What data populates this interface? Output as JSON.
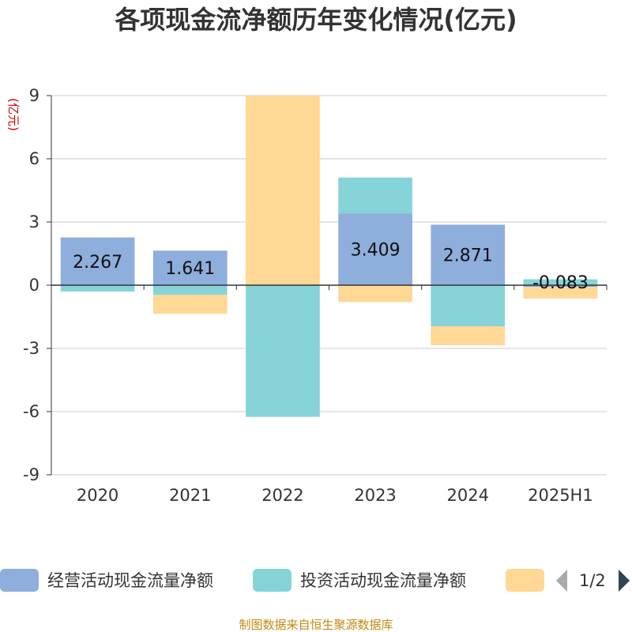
{
  "chart_data": {
    "type": "bar",
    "stacked": true,
    "title": "各项现金流净额历年变化情况(亿元)",
    "ylabel": "(亿元)",
    "ylim": [
      -9,
      9
    ],
    "yticks": [
      "9",
      "6",
      "3",
      "0",
      "-3",
      "-6",
      "-9"
    ],
    "categories": [
      "2020",
      "2021",
      "2022",
      "2023",
      "2024",
      "2025H1"
    ],
    "series": [
      {
        "name": "经营活动现金流量净额",
        "color": "#8eaedc",
        "values": [
          2.267,
          1.641,
          -0.0,
          3.409,
          2.871,
          -0.083
        ],
        "labels": [
          "2.267",
          "1.641",
          "",
          "3.409",
          "2.871",
          "-0.083"
        ]
      },
      {
        "name": "投资活动现金流量净额",
        "color": "#86d4d8",
        "values": [
          -0.3,
          -0.45,
          -6.25,
          1.7,
          -1.95,
          0.28
        ]
      },
      {
        "name": "",
        "color": "#fed894",
        "values": [
          0.0,
          -0.9,
          9.0,
          -0.8,
          -0.9,
          -0.55
        ]
      }
    ],
    "grid": true,
    "legend_position": "bottom",
    "legend_page": "1/2"
  },
  "source_note": "制图数据来自恒生聚源数据库"
}
